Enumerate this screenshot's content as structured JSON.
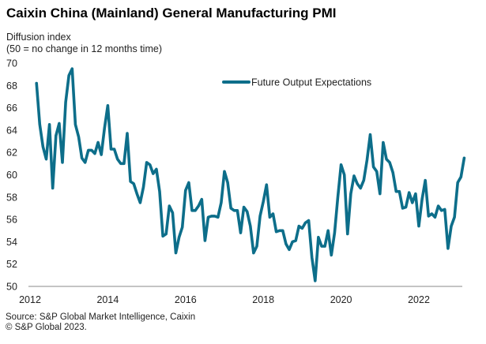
{
  "chart_data": {
    "type": "line",
    "title": "Caixin China (Mainland) General Manufacturing PMI",
    "ylabel": "Diffusion index",
    "ylabel_note": "(50 = no change in 12 months time)",
    "xlabel": "",
    "ylim": [
      50,
      70
    ],
    "yticks": [
      50,
      52,
      54,
      56,
      58,
      60,
      62,
      64,
      66,
      68,
      70
    ],
    "xlim": [
      2012.0,
      2023.25
    ],
    "xticks": [
      2012,
      2014,
      2016,
      2018,
      2020,
      2022
    ],
    "grid": false,
    "legend_position": "top-right",
    "series": [
      {
        "name": "Future Output Expectations",
        "color": "#0d6e8a",
        "start": "2012-03",
        "frequency": "monthly",
        "values": [
          68.2,
          64.5,
          62.5,
          61.4,
          64.5,
          58.8,
          63.5,
          64.6,
          61.1,
          66.5,
          68.9,
          69.5,
          64.5,
          63.4,
          61.5,
          61.1,
          62.2,
          62.2,
          61.9,
          62.9,
          61.8,
          64.2,
          66.2,
          62.3,
          62.3,
          61.4,
          61.0,
          61.0,
          63.7,
          59.4,
          59.2,
          58.3,
          57.5,
          58.9,
          61.1,
          60.9,
          60.1,
          60.5,
          58.5,
          54.5,
          54.7,
          57.2,
          56.6,
          53.0,
          54.4,
          55.3,
          58.6,
          59.3,
          56.8,
          56.8,
          57.2,
          57.8,
          54.1,
          56.2,
          56.3,
          56.3,
          56.2,
          57.5,
          60.3,
          59.3,
          57.0,
          56.8,
          56.8,
          54.8,
          57.1,
          56.7,
          55.4,
          53.0,
          53.6,
          56.3,
          57.6,
          59.1,
          56.2,
          56.5,
          54.9,
          55.0,
          55.0,
          53.8,
          53.3,
          54.0,
          54.1,
          55.4,
          55.2,
          55.7,
          55.9,
          52.6,
          50.5,
          54.4,
          53.6,
          53.6,
          55.0,
          52.8,
          54.8,
          58.0,
          60.9,
          60.0,
          54.7,
          58.3,
          59.9,
          59.2,
          58.8,
          59.5,
          61.3,
          63.6,
          60.7,
          60.3,
          58.3,
          62.9,
          61.4,
          61.1,
          60.2,
          58.5,
          58.5,
          57.0,
          57.1,
          58.4,
          57.5,
          58.3,
          55.4,
          57.8,
          59.5,
          56.3,
          56.5,
          56.2,
          57.2,
          56.8,
          56.9,
          53.4,
          55.4,
          56.2,
          59.3,
          59.8,
          61.5
        ]
      }
    ]
  },
  "header": {
    "title": "Caixin China (Mainland) General Manufacturing PMI",
    "subtitle_line1": "Diffusion index",
    "subtitle_line2": "(50 = no change in 12 months time)"
  },
  "footer": {
    "source": "Source: S&P Global Market Intelligence, Caixin",
    "copyright": "© S&P Global 2023."
  }
}
